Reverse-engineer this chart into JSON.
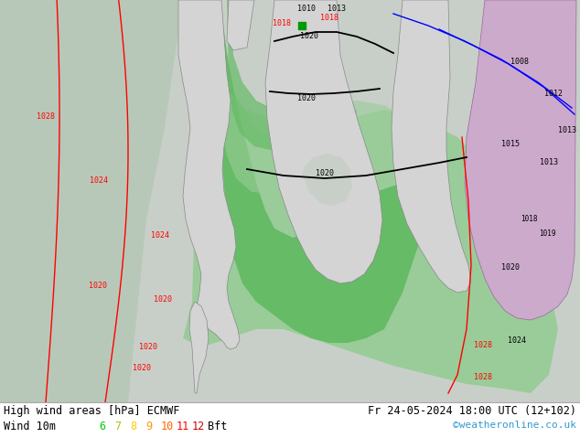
{
  "title_left": "High wind areas [hPa] ECMWF",
  "title_right": "Fr 24-05-2024 18:00 UTC (12+102)",
  "subtitle_left": "Wind 10m",
  "bft_label": "Bft",
  "bft_numbers": [
    "6",
    "7",
    "8",
    "9",
    "10",
    "11",
    "12"
  ],
  "bft_colors": [
    "#00cc00",
    "#99cc00",
    "#ffcc00",
    "#ff9900",
    "#ff6600",
    "#ff0000",
    "#cc0000"
  ],
  "watermark": "©weatheronline.co.uk",
  "watermark_color": "#3399cc",
  "sea_color": "#c8cfc8",
  "land_color": "#d4d4d4",
  "green_light": "#99cc99",
  "green_mid": "#66bb66",
  "green_dark": "#33aa33",
  "red_contour": "#ff0000",
  "blue_contour": "#0000ff",
  "black_contour": "#000000",
  "purple_land": "#ccaacc",
  "bottom_bar_color": "#ffffff",
  "fig_width": 6.34,
  "fig_height": 4.9,
  "dpi": 100
}
